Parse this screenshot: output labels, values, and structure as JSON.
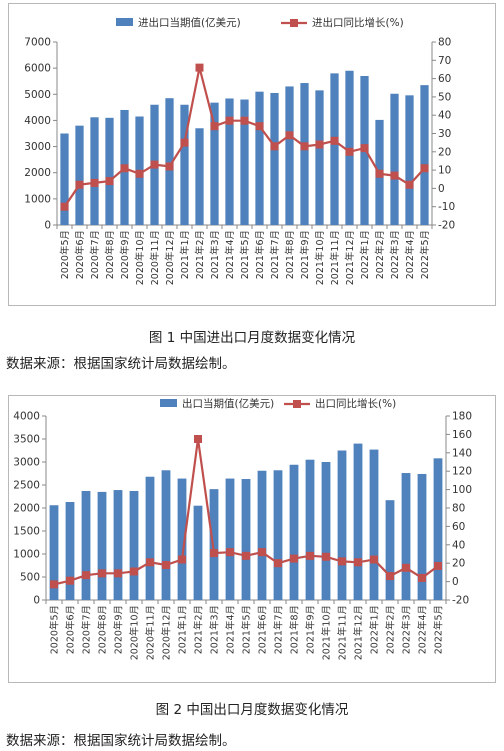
{
  "figures": [
    {
      "caption": "图 1 中国进出口月度数据变化情况",
      "source": "数据来源：根据国家统计局数据绘制。"
    },
    {
      "caption": "图 2 中国出口月度数据变化情况",
      "source": "数据来源：根据国家统计局数据绘制。"
    }
  ],
  "chart_data": [
    {
      "type": "bar",
      "categories": [
        "2020年5月",
        "2020年6月",
        "2020年7月",
        "2020年8月",
        "2020年9月",
        "2020年10月",
        "2020年11月",
        "2020年12月",
        "2021年1月",
        "2021年2月",
        "2021年3月",
        "2021年4月",
        "2021年5月",
        "2021年6月",
        "2021年7月",
        "2021年8月",
        "2021年9月",
        "2021年10月",
        "2021年11月",
        "2021年12月",
        "2022年1月",
        "2022年2月",
        "2022年3月",
        "2022年4月",
        "2022年5月"
      ],
      "series": [
        {
          "name": "进出口当期值(亿美元)",
          "type": "bar",
          "axis": "left",
          "values": [
            3500,
            3800,
            4120,
            4100,
            4400,
            4150,
            4600,
            4850,
            4600,
            3700,
            4680,
            4840,
            4800,
            5100,
            5050,
            5300,
            5430,
            5150,
            5800,
            5900,
            5700,
            4020,
            5020,
            4960,
            5350
          ]
        },
        {
          "name": "进出口同比增长(%)",
          "type": "line",
          "axis": "right",
          "values": [
            -10,
            2,
            3,
            4,
            11,
            8,
            13,
            12,
            25,
            66,
            34,
            37,
            37,
            34,
            23,
            29,
            23,
            24,
            26,
            20,
            22,
            8,
            7,
            2,
            11
          ]
        }
      ],
      "ylim_left": [
        0,
        7000
      ],
      "yticks_left": [
        0,
        1000,
        2000,
        3000,
        4000,
        5000,
        6000,
        7000
      ],
      "ylim_right": [
        -20,
        80
      ],
      "yticks_right": [
        -20,
        -10,
        0,
        10,
        20,
        30,
        40,
        50,
        60,
        70,
        80
      ],
      "legend_position": "top",
      "colors": {
        "bar": "#4F81BD",
        "line": "#C0504D",
        "axis": "#888888"
      }
    },
    {
      "type": "bar",
      "categories": [
        "2020年5月",
        "2020年6月",
        "2020年7月",
        "2020年8月",
        "2020年9月",
        "2020年10月",
        "2020年11月",
        "2020年12月",
        "2021年1月",
        "2021年2月",
        "2021年3月",
        "2021年4月",
        "2021年5月",
        "2021年6月",
        "2021年7月",
        "2021年8月",
        "2021年9月",
        "2021年10月",
        "2021年11月",
        "2021年12月",
        "2022年1月",
        "2022年2月",
        "2022年3月",
        "2022年4月",
        "2022年5月"
      ],
      "series": [
        {
          "name": "出口当期值(亿美元)",
          "type": "bar",
          "axis": "left",
          "values": [
            2060,
            2130,
            2370,
            2350,
            2390,
            2370,
            2680,
            2820,
            2640,
            2050,
            2410,
            2640,
            2630,
            2810,
            2820,
            2940,
            3050,
            3000,
            3250,
            3400,
            3270,
            2170,
            2760,
            2740,
            3080
          ]
        },
        {
          "name": "出口同比增长(%)",
          "type": "line",
          "axis": "right",
          "values": [
            -3,
            1,
            7,
            9,
            9,
            11,
            21,
            18,
            24,
            155,
            31,
            32,
            28,
            32,
            20,
            25,
            28,
            27,
            22,
            21,
            24,
            6,
            15,
            4,
            17
          ]
        }
      ],
      "ylim_left": [
        0,
        4000
      ],
      "yticks_left": [
        0,
        500,
        1000,
        1500,
        2000,
        2500,
        3000,
        3500,
        4000
      ],
      "ylim_right": [
        -20,
        180
      ],
      "yticks_right": [
        -20,
        0,
        20,
        40,
        60,
        80,
        100,
        120,
        140,
        160,
        180
      ],
      "legend_position": "top",
      "colors": {
        "bar": "#4F81BD",
        "line": "#C0504D",
        "axis": "#888888"
      }
    }
  ]
}
